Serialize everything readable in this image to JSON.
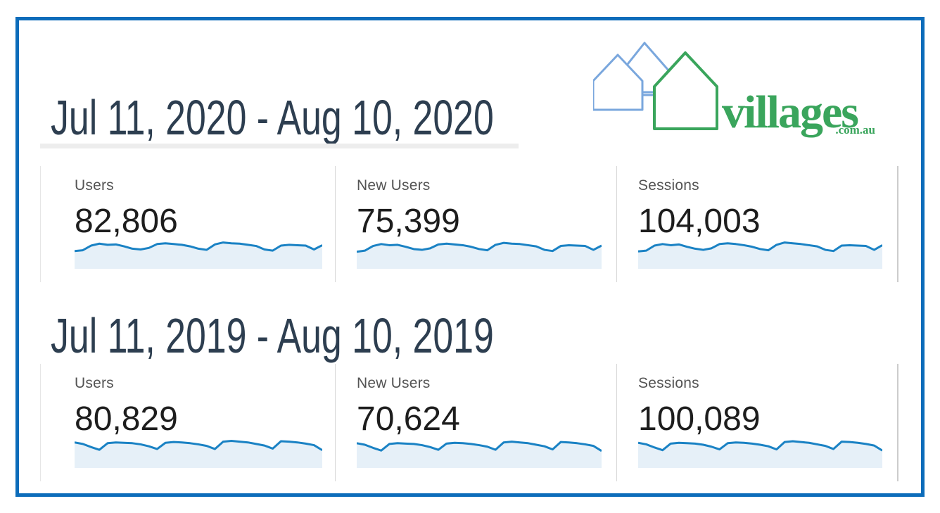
{
  "ui": {
    "logo": {
      "brand": "villages",
      "suffix": ".com.au",
      "icon": "three-houses-icon"
    },
    "colors": {
      "frame_border": "#0c6cba",
      "heading_text": "#2d3e50",
      "metric_label": "#545454",
      "metric_value": "#1d1d1d",
      "spark_line": "#1a82c4",
      "spark_fill": "#e6f0f8",
      "divider": "#d8d8d8",
      "logo_green": "#3aa55c",
      "logo_blue": "#7aa7dd"
    }
  },
  "chart_data": [
    {
      "type": "area",
      "title": "Jul 11, 2020 - Aug 10, 2020",
      "x": "daily values across the date range (31 days, axis unlabeled)",
      "grid": false,
      "legend": false,
      "metrics": [
        {
          "label": "Users",
          "value": 82806,
          "value_display": "82,806",
          "sparkline_relative": [
            46,
            48,
            60,
            65,
            62,
            63,
            58,
            52,
            50,
            54,
            64,
            66,
            64,
            62,
            58,
            52,
            49,
            63,
            68,
            66,
            65,
            62,
            59,
            50,
            47,
            60,
            62,
            61,
            60,
            50,
            61
          ]
        },
        {
          "label": "New Users",
          "value": 75399,
          "value_display": "75,399",
          "sparkline_relative": [
            44,
            47,
            59,
            64,
            61,
            62,
            57,
            51,
            49,
            53,
            63,
            65,
            63,
            61,
            57,
            51,
            48,
            62,
            67,
            65,
            64,
            61,
            58,
            49,
            46,
            59,
            61,
            60,
            59,
            49,
            60
          ]
        },
        {
          "label": "Sessions",
          "value": 104003,
          "value_display": "104,003",
          "sparkline_relative": [
            45,
            47,
            60,
            64,
            61,
            63,
            57,
            52,
            49,
            53,
            64,
            66,
            64,
            61,
            57,
            51,
            48,
            62,
            68,
            66,
            64,
            61,
            58,
            49,
            46,
            60,
            61,
            60,
            59,
            49,
            61
          ]
        }
      ]
    },
    {
      "type": "area",
      "title": "Jul 11, 2019 - Aug 10, 2019",
      "x": "daily values across the date range (31 days, axis unlabeled)",
      "grid": false,
      "legend": false,
      "metrics": [
        {
          "label": "Users",
          "value": 80829,
          "value_display": "80,829",
          "sparkline_relative": [
            66,
            62,
            54,
            47,
            64,
            66,
            65,
            64,
            61,
            56,
            49,
            65,
            67,
            66,
            64,
            61,
            57,
            49,
            68,
            70,
            68,
            66,
            62,
            58,
            50,
            69,
            68,
            66,
            63,
            59,
            46
          ]
        },
        {
          "label": "New Users",
          "value": 70624,
          "value_display": "70,624",
          "sparkline_relative": [
            64,
            60,
            52,
            45,
            62,
            64,
            63,
            62,
            59,
            54,
            47,
            63,
            65,
            64,
            62,
            59,
            55,
            47,
            66,
            68,
            66,
            64,
            60,
            56,
            48,
            67,
            66,
            64,
            61,
            57,
            44
          ]
        },
        {
          "label": "Sessions",
          "value": 100089,
          "value_display": "100,089",
          "sparkline_relative": [
            65,
            61,
            53,
            46,
            63,
            65,
            64,
            63,
            60,
            55,
            48,
            64,
            66,
            65,
            63,
            60,
            56,
            48,
            67,
            69,
            67,
            65,
            61,
            57,
            49,
            68,
            67,
            65,
            62,
            58,
            45
          ]
        }
      ]
    }
  ]
}
